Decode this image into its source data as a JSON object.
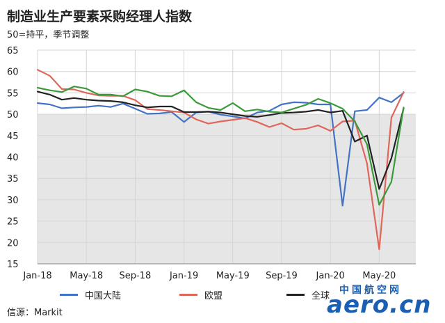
{
  "header": {
    "title": "制造业生产要素采购经理人指数",
    "subtitle": "50=持平，季节调整"
  },
  "source": "信源：Markit",
  "watermark": {
    "top": "中国航空网",
    "bottom": "aero.cn"
  },
  "colors": {
    "shade": "#e6e6e6",
    "grid": "#d4d4d4",
    "china": "#4472c4",
    "eu": "#e0665a",
    "global": "#222222",
    "green": "#3a9a3a",
    "watermark": "#1a5fb4"
  },
  "legend": [
    {
      "label": "中国大陆",
      "color": "#4472c4"
    },
    {
      "label": "欧盟",
      "color": "#e0665a"
    },
    {
      "label": "全球",
      "color": "#222222"
    }
  ],
  "chart_data": {
    "type": "line",
    "xlim": [
      "2018-01",
      "2020-08"
    ],
    "ylim": [
      15,
      65
    ],
    "yticks": [
      15,
      20,
      25,
      30,
      35,
      40,
      45,
      50,
      55,
      60,
      65
    ],
    "xticks": [
      "Jan-18",
      "May-18",
      "Sep-18",
      "Jan-19",
      "May-19",
      "Sep-19",
      "Jan-20",
      "May-20"
    ],
    "shade_below": 50,
    "x": [
      "2018-01",
      "2018-02",
      "2018-03",
      "2018-04",
      "2018-05",
      "2018-06",
      "2018-07",
      "2018-08",
      "2018-09",
      "2018-10",
      "2018-11",
      "2018-12",
      "2019-01",
      "2019-02",
      "2019-03",
      "2019-04",
      "2019-05",
      "2019-06",
      "2019-07",
      "2019-08",
      "2019-09",
      "2019-10",
      "2019-11",
      "2019-12",
      "2020-01",
      "2020-02",
      "2020-03",
      "2020-04",
      "2020-05",
      "2020-06",
      "2020-07"
    ],
    "series": [
      {
        "name": "中国大陆",
        "values": [
          52.6,
          52.3,
          51.4,
          51.6,
          51.7,
          52.0,
          51.7,
          52.5,
          51.3,
          50.1,
          50.2,
          50.5,
          48.2,
          50.4,
          50.6,
          49.9,
          49.5,
          49.0,
          50.4,
          50.8,
          52.3,
          52.8,
          52.7,
          52.3,
          52.3,
          28.6,
          50.7,
          51.0,
          53.9,
          52.8,
          55.0
        ]
      },
      {
        "name": "欧盟",
        "values": [
          60.4,
          59.0,
          55.9,
          55.8,
          55.0,
          54.4,
          54.3,
          54.3,
          53.3,
          51.2,
          51.0,
          50.7,
          50.4,
          48.8,
          47.8,
          48.3,
          48.7,
          49.1,
          48.2,
          47.0,
          47.9,
          46.4,
          46.6,
          47.4,
          46.1,
          48.3,
          48.5,
          38.5,
          18.4,
          49.2,
          55.2
        ]
      },
      {
        "name": "全球",
        "values": [
          55.3,
          54.6,
          53.4,
          53.8,
          53.4,
          53.2,
          53.1,
          52.8,
          52.1,
          51.6,
          51.8,
          51.8,
          50.5,
          50.5,
          50.6,
          50.4,
          50.0,
          49.6,
          49.4,
          49.8,
          50.3,
          50.4,
          50.6,
          51.0,
          50.4,
          50.8,
          43.6,
          45.0,
          32.5,
          39.7,
          51.4
        ]
      },
      {
        "values": [
          56.2,
          55.6,
          55.2,
          56.5,
          56.0,
          54.6,
          54.6,
          54.2,
          55.8,
          55.3,
          54.3,
          54.2,
          55.6,
          52.8,
          51.5,
          51.0,
          52.6,
          50.7,
          51.1,
          50.6,
          50.4,
          51.3,
          52.2,
          53.6,
          52.6,
          51.3,
          48.3,
          43.0,
          28.8,
          34.2,
          51.6
        ]
      }
    ]
  }
}
